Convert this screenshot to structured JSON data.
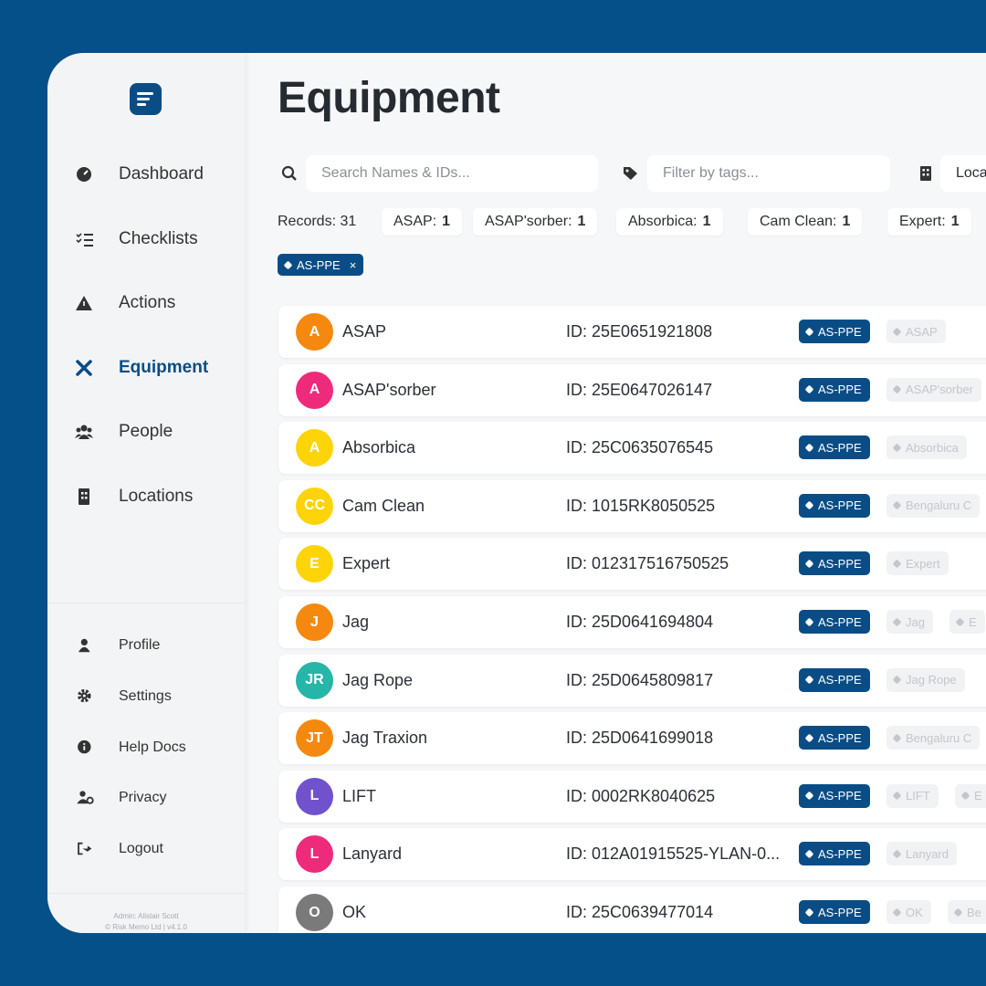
{
  "sidebar": {
    "nav": [
      "Dashboard",
      "Checklists",
      "Actions",
      "Equipment",
      "People",
      "Locations"
    ],
    "account": [
      "Profile",
      "Settings",
      "Help Docs",
      "Privacy",
      "Logout"
    ],
    "footer": [
      "Admin: Alistair Scott",
      "© Risk Memo Ltd | v4.1.0"
    ]
  },
  "header": {
    "title": "Equipment"
  },
  "filters": {
    "search": "Search Names & IDs...",
    "tags": "Filter by tags...",
    "location": "Loca"
  },
  "summary": {
    "records_label": "Records:",
    "records": 31,
    "counts": [
      {
        "label": "ASAP:",
        "count": 1
      },
      {
        "label": "ASAP'sorber:",
        "count": 1
      },
      {
        "label": "Absorbica:",
        "count": 1
      },
      {
        "label": "Cam Clean:",
        "count": 1
      },
      {
        "label": "Expert:",
        "count": 1
      }
    ]
  },
  "active_tags": [
    "AS-PPE"
  ],
  "rows": [
    {
      "initials": "A",
      "color": "#f5890f",
      "name": "ASAP",
      "id": "ID: 25E0651921808",
      "tags": [
        "AS-PPE",
        "ASAP"
      ]
    },
    {
      "initials": "A",
      "color": "#ee2a7b",
      "name": "ASAP'sorber",
      "id": "ID: 25E0647026147",
      "tags": [
        "AS-PPE",
        "ASAP'sorber"
      ]
    },
    {
      "initials": "A",
      "color": "#fdd40a",
      "name": "Absorbica",
      "id": "ID: 25C0635076545",
      "tags": [
        "AS-PPE",
        "Absorbica"
      ]
    },
    {
      "initials": "CC",
      "color": "#fdd40a",
      "name": "Cam Clean",
      "id": "ID: 1015RK8050525",
      "tags": [
        "AS-PPE",
        "Bengaluru C"
      ]
    },
    {
      "initials": "E",
      "color": "#fdd40a",
      "name": "Expert",
      "id": "ID: 012317516750525",
      "tags": [
        "AS-PPE",
        "Expert"
      ]
    },
    {
      "initials": "J",
      "color": "#f5890f",
      "name": "Jag",
      "id": "ID: 25D0641694804",
      "tags": [
        "AS-PPE",
        "Jag",
        "E"
      ]
    },
    {
      "initials": "JR",
      "color": "#26b5a7",
      "name": "Jag Rope",
      "id": "ID: 25D0645809817",
      "tags": [
        "AS-PPE",
        "Jag Rope"
      ]
    },
    {
      "initials": "JT",
      "color": "#f5890f",
      "name": "Jag Traxion",
      "id": "ID: 25D0641699018",
      "tags": [
        "AS-PPE",
        "Bengaluru C"
      ]
    },
    {
      "initials": "L",
      "color": "#6f52cc",
      "name": "LIFT",
      "id": "ID: 0002RK8040625",
      "tags": [
        "AS-PPE",
        "LIFT",
        "E"
      ]
    },
    {
      "initials": "L",
      "color": "#ee2a7b",
      "name": "Lanyard",
      "id": "ID: 012A01915525-YLAN-0...",
      "tags": [
        "AS-PPE",
        "Lanyard"
      ]
    },
    {
      "initials": "O",
      "color": "#7a7a7a",
      "name": "OK",
      "id": "ID: 25C0639477014",
      "tags": [
        "AS-PPE",
        "OK",
        "Be"
      ]
    }
  ]
}
